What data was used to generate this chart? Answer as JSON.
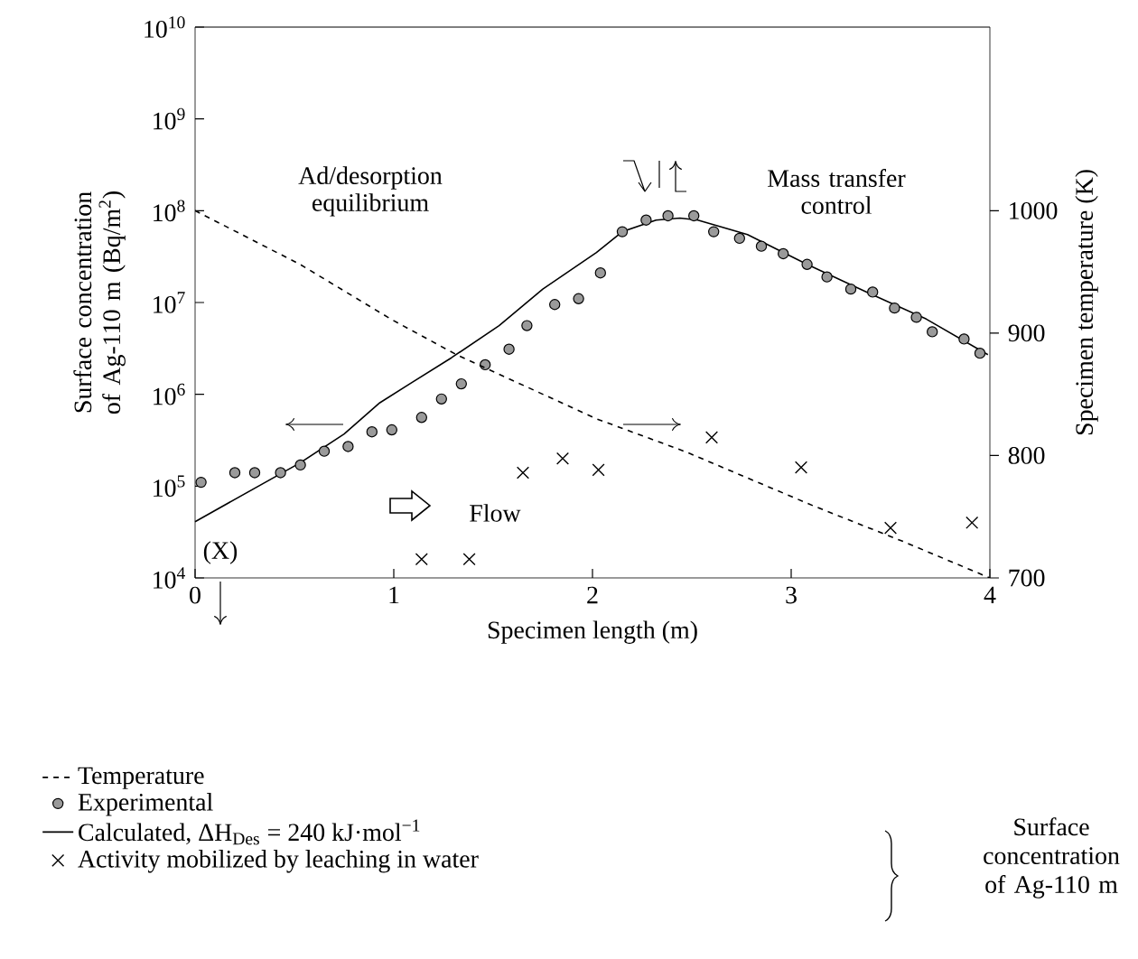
{
  "chart_data": {
    "type": "line",
    "xlabel": "Specimen length (m)",
    "ylabel": "Surface concentration of Ag-110 m (Bq/m$^{2}$)",
    "y2label": "Specimen temperature (K)",
    "xlim": [
      0,
      4
    ],
    "xticks": [
      0,
      1,
      2,
      3,
      4
    ],
    "ylim": [
      10000,
      10000000000
    ],
    "log": true,
    "yticks": [
      {
        "value": 10000,
        "label": "10$^{4}$"
      },
      {
        "value": 100000,
        "label": "10$^{5}$"
      },
      {
        "value": 1000000,
        "label": "10$^{6}$"
      },
      {
        "value": 10000000,
        "label": "10$^{7}$"
      },
      {
        "value": 100000000,
        "label": "10$^{8}$"
      },
      {
        "value": 1000000000,
        "label": "10$^{9}$"
      },
      {
        "value": 10000000000,
        "label": "10$^{10}$"
      }
    ],
    "y2lim": [
      700,
      1150
    ],
    "y2ticks": [
      700,
      800,
      900,
      1000
    ],
    "legend": "bottom",
    "series": [
      {
        "name": "Temperature",
        "axis": "y2",
        "color": "#000000",
        "line_style": "dashed",
        "marker": "none",
        "x": [
          0,
          0.53,
          0.99,
          1.32,
          2.02,
          2.47,
          3.11,
          3.56,
          4
        ],
        "values": [
          1000,
          956,
          911,
          882,
          830,
          803,
          759,
          730,
          700
        ]
      },
      {
        "name": "Experimental",
        "type": "scatter",
        "color": "#9a9a9a",
        "marker": "circle",
        "x": [
          0.03,
          0.2,
          0.3,
          0.43,
          0.53,
          0.65,
          0.77,
          0.89,
          0.99,
          1.14,
          1.24,
          1.34,
          1.46,
          1.58,
          1.67,
          1.81,
          1.93,
          2.04,
          2.15,
          2.27,
          2.38,
          2.51,
          2.61,
          2.74,
          2.85,
          2.96,
          3.08,
          3.18,
          3.3,
          3.41,
          3.52,
          3.63,
          3.71,
          3.87,
          3.95
        ],
        "values": [
          110000,
          140000,
          140000,
          140000,
          170000,
          240000,
          270000,
          390000,
          410000,
          560000,
          890000,
          1300000,
          2100000,
          3100000,
          5600000,
          9500000,
          11000000,
          21000000,
          59000000,
          79000000,
          88000000,
          88000000,
          59000000,
          50000000,
          41000000,
          34000000,
          26000000,
          19000000,
          14000000,
          13000000,
          8700000,
          6900000,
          4800000,
          4000000,
          2800000
        ]
      },
      {
        "name": "Calculated, ΔH$_{Des}$ = 240 kJ·mol$^{−1}$",
        "color": "#000000",
        "line_style": "solid",
        "marker": "none",
        "x": [
          0,
          0.53,
          0.75,
          0.93,
          1.08,
          1.29,
          1.53,
          1.75,
          2.02,
          2.15,
          2.32,
          2.44,
          2.53,
          2.78,
          3.08,
          3.38,
          3.68,
          3.99
        ],
        "values": [
          41000,
          180000,
          370000,
          810000,
          1300000,
          2500000,
          5600000,
          14000000,
          35000000,
          59000000,
          79000000,
          83000000,
          79000000,
          55000000,
          26000000,
          13000000,
          6600000,
          2700000
        ]
      },
      {
        "name": "Activity mobilized by leaching in water",
        "type": "scatter",
        "color": "#000000",
        "marker": "cross",
        "x": [
          1.14,
          1.38,
          1.65,
          1.85,
          2.03,
          2.6,
          3.05,
          3.5,
          3.91
        ],
        "values": [
          16000,
          16000,
          140000,
          200000,
          150000,
          340000,
          160000,
          35000,
          40000
        ]
      }
    ],
    "annotations": [
      "Ad/desorption equilibrium",
      "Mass transfer control",
      "Flow",
      "(X)",
      "Surface concentration of Ag-110 m"
    ]
  }
}
